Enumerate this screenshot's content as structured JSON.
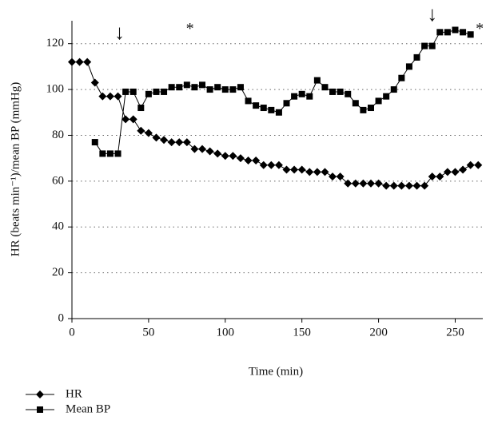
{
  "chart_data": {
    "type": "line",
    "x_label": "Time (min)",
    "y_label": "HR (beats min⁻¹)/mean BP (mmHg)",
    "xlim": [
      0,
      268
    ],
    "xticks": [
      0,
      50,
      100,
      150,
      200,
      250
    ],
    "ylim": [
      0,
      130
    ],
    "yticks": [
      0,
      20,
      40,
      60,
      80,
      100,
      120
    ],
    "grid": true,
    "legend": "bottom-left",
    "series": [
      {
        "name": "HR",
        "color": "#000000",
        "marker": "diamond",
        "x": [
          0,
          5,
          10,
          15,
          20,
          25,
          30,
          35,
          40,
          45,
          50,
          55,
          60,
          65,
          70,
          75,
          80,
          85,
          90,
          95,
          100,
          105,
          110,
          115,
          120,
          125,
          130,
          135,
          140,
          145,
          150,
          155,
          160,
          165,
          170,
          175,
          180,
          185,
          190,
          195,
          200,
          205,
          210,
          215,
          220,
          225,
          230,
          235,
          240,
          245,
          250,
          255,
          260,
          265
        ],
        "values": [
          112,
          112,
          112,
          103,
          97,
          97,
          97,
          87,
          87,
          82,
          81,
          79,
          78,
          77,
          77,
          77,
          74,
          74,
          73,
          72,
          71,
          71,
          70,
          69,
          69,
          67,
          67,
          67,
          65,
          65,
          65,
          64,
          64,
          64,
          62,
          62,
          59,
          59,
          59,
          59,
          59,
          58,
          58,
          58,
          58,
          58,
          58,
          62,
          62,
          64,
          64,
          65,
          67,
          67
        ]
      },
      {
        "name": "Mean BP",
        "color": "#000000",
        "marker": "square",
        "x": [
          15,
          20,
          25,
          30,
          35,
          40,
          45,
          50,
          55,
          60,
          65,
          70,
          75,
          80,
          85,
          90,
          95,
          100,
          105,
          110,
          115,
          120,
          125,
          130,
          135,
          140,
          145,
          150,
          155,
          160,
          165,
          170,
          175,
          180,
          185,
          190,
          195,
          200,
          205,
          210,
          215,
          220,
          225,
          230,
          235,
          240,
          245,
          250,
          255,
          260
        ],
        "values": [
          77,
          72,
          72,
          72,
          99,
          99,
          92,
          98,
          99,
          99,
          101,
          101,
          102,
          101,
          102,
          100,
          101,
          100,
          100,
          101,
          95,
          93,
          92,
          91,
          90,
          94,
          97,
          98,
          97,
          104,
          101,
          99,
          99,
          98,
          94,
          91,
          92,
          95,
          97,
          100,
          105,
          110,
          114,
          119,
          119,
          125,
          125,
          126,
          125,
          124
        ]
      }
    ],
    "annotations": [
      {
        "text": "↓",
        "x": 31,
        "y": 124
      },
      {
        "text": "*",
        "x": 77,
        "y": 126
      },
      {
        "text": "↓",
        "x": 235,
        "y": 132
      },
      {
        "text": "*",
        "x": 266,
        "y": 126
      }
    ]
  }
}
